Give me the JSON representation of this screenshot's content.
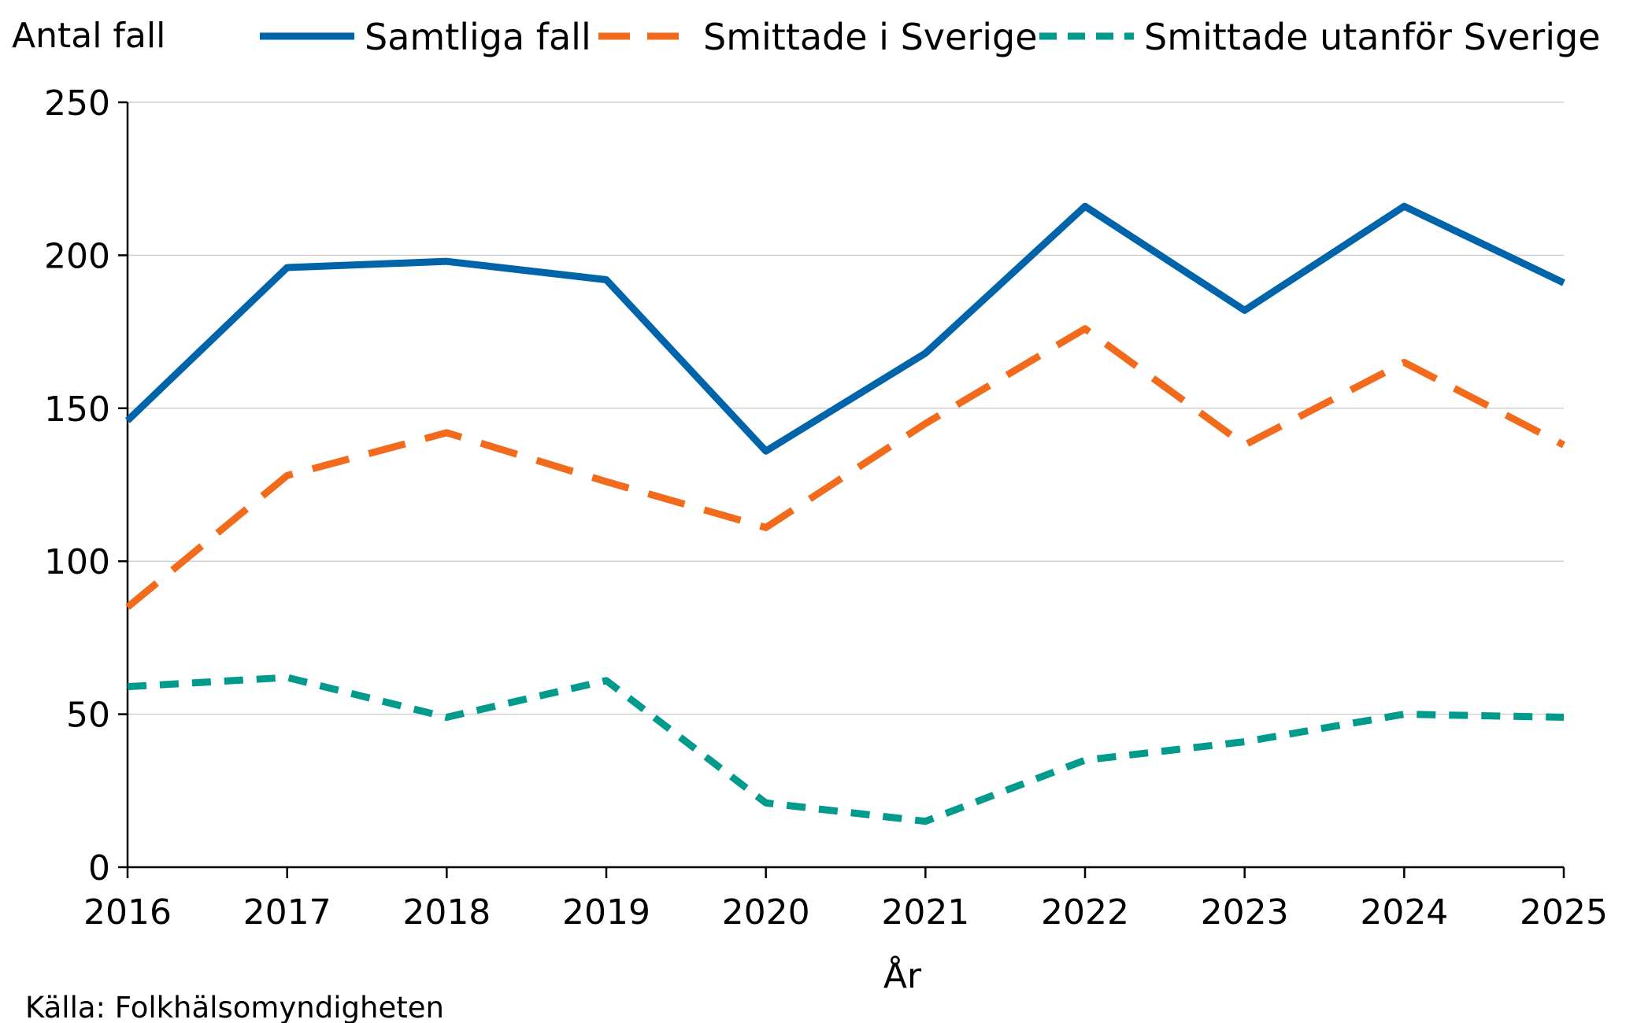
{
  "chart_data": {
    "type": "line",
    "ylabel": "Antal fall",
    "xlabel": "År",
    "source": "Källa: Folkhälsomyndigheten",
    "x": [
      2016,
      2017,
      2018,
      2019,
      2020,
      2021,
      2022,
      2023,
      2024,
      2025
    ],
    "x_tick_labels": [
      "2016",
      "2017",
      "2018",
      "2019",
      "2020",
      "2021",
      "2022",
      "2023",
      "2024",
      "2025"
    ],
    "ylim": [
      0,
      250
    ],
    "y_ticks": [
      0,
      50,
      100,
      150,
      200,
      250
    ],
    "y_tick_labels": [
      "0",
      "50",
      "100",
      "150",
      "200",
      "250"
    ],
    "grid": "horizontal",
    "legend_position": "top",
    "series": [
      {
        "name": "Samtliga fall",
        "color": "#0064AA",
        "style": "solid",
        "values": [
          146,
          196,
          198,
          192,
          136,
          168,
          216,
          182,
          216,
          191
        ]
      },
      {
        "name": "Smittade i Sverige",
        "color": "#F26B1D",
        "style": "long-dash",
        "values": [
          85,
          128,
          142,
          126,
          111,
          145,
          176,
          138,
          165,
          138
        ]
      },
      {
        "name": "Smittade utanför Sverige",
        "color": "#009B8D",
        "style": "short-dash",
        "values": [
          59,
          62,
          49,
          61,
          21,
          15,
          35,
          41,
          50,
          49
        ]
      }
    ]
  }
}
